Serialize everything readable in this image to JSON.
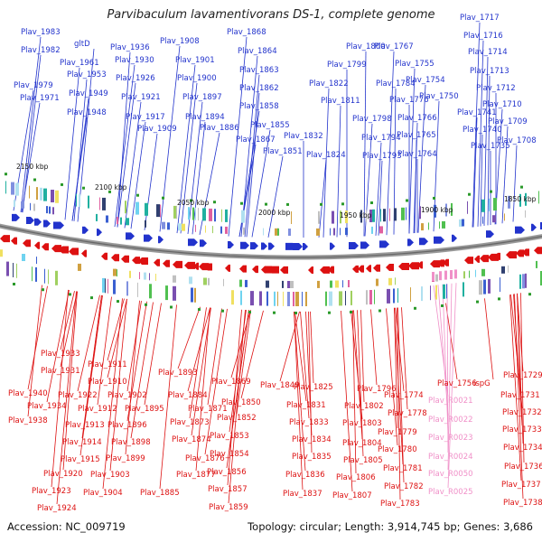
{
  "title": "Parvibaculum lavamentivorans DS-1, complete genome",
  "footer": {
    "accession": "Accession: NC_009719",
    "summary": "Topology: circular; Length: 3,914,745 bp; Genes: 3,686"
  },
  "colors": {
    "forward": "#2233cc",
    "reverse": "#dd1111",
    "rna": "#f090c8",
    "backbone": "#888888"
  },
  "ticks": [
    "2150 kbp",
    "2100 kbp",
    "2050 kbp",
    "2000 kbp",
    "1950 kbp",
    "1900 kbp",
    "1850 kbp"
  ],
  "forward_labels": [
    "Plav_1983",
    "Plav_1982",
    "gltD",
    "Plav_1961",
    "Plav_1953",
    "Plav_1979",
    "Plav_1971",
    "Plav_1949",
    "Plav_1948",
    "Plav_1936",
    "Plav_1930",
    "Plav_1926",
    "Plav_1921",
    "Plav_1917",
    "Plav_1909",
    "Plav_1908",
    "Plav_1901",
    "Plav_1900",
    "Plav_1897",
    "Plav_1894",
    "Plav_1886",
    "Plav_1868",
    "Plav_1864",
    "Plav_1863",
    "Plav_1862",
    "Plav_1858",
    "Plav_1855",
    "Plav_1867",
    "Plav_1851",
    "Plav_1832",
    "Plav_1824",
    "Plav_1822",
    "Plav_1811",
    "Plav_1800",
    "Plav_1799",
    "Plav_1798",
    "Plav_1794",
    "Plav_1793",
    "Plav_1784",
    "Plav_1776",
    "Plav_1767",
    "Plav_1755",
    "Plav_1766",
    "Plav_1765",
    "Plav_1764",
    "Plav_1754",
    "Plav_1750",
    "Plav_1741",
    "Plav_1740",
    "Plav_1735",
    "Plav_1717",
    "Plav_1716",
    "Plav_1714",
    "Plav_1713",
    "Plav_1712",
    "Plav_1710",
    "Plav_1709",
    "Plav_1708"
  ],
  "reverse_labels": [
    "Plav_1933",
    "Plav_1931",
    "Plav_1940",
    "Plav_1934",
    "Plav_1938",
    "Plav_1911",
    "Plav_1910",
    "Plav_1922",
    "Plav_1912",
    "Plav_1913",
    "Plav_1914",
    "Plav_1915",
    "Plav_1920",
    "Plav_1923",
    "Plav_1924",
    "Plav_1893",
    "Plav_1902",
    "Plav_1895",
    "Plav_1896",
    "Plav_1898",
    "Plav_1899",
    "Plav_1903",
    "Plav_1904",
    "Plav_1884",
    "Plav_1871",
    "Plav_1873",
    "Plav_1874",
    "Plav_1876",
    "Plav_1877",
    "Plav_1885",
    "Plav_1869",
    "Plav_1850",
    "Plav_1852",
    "Plav_1853",
    "Plav_1854",
    "Plav_1856",
    "Plav_1857",
    "Plav_1859",
    "Plav_1849",
    "Plav_1825",
    "Plav_1831",
    "Plav_1833",
    "Plav_1834",
    "Plav_1835",
    "Plav_1836",
    "Plav_1837",
    "Plav_1796",
    "Plav_1802",
    "Plav_1803",
    "Plav_1804",
    "Plav_1805",
    "Plav_1806",
    "Plav_1807",
    "Plav_1774",
    "Plav_1778",
    "Plav_1779",
    "Plav_1780",
    "Plav_1781",
    "Plav_1782",
    "Plav_1783",
    "Plav_1756",
    "ispG",
    "Plav_1729",
    "Plav_1731",
    "Plav_1732",
    "Plav_1733",
    "Plav_1734",
    "Plav_1736",
    "Plav_1737",
    "Plav_1738"
  ],
  "rna_labels": [
    "Plav_R0021",
    "Plav_R0022",
    "Plav_R0023",
    "Plav_R0024",
    "Plav_R0050",
    "Plav_R0025"
  ]
}
